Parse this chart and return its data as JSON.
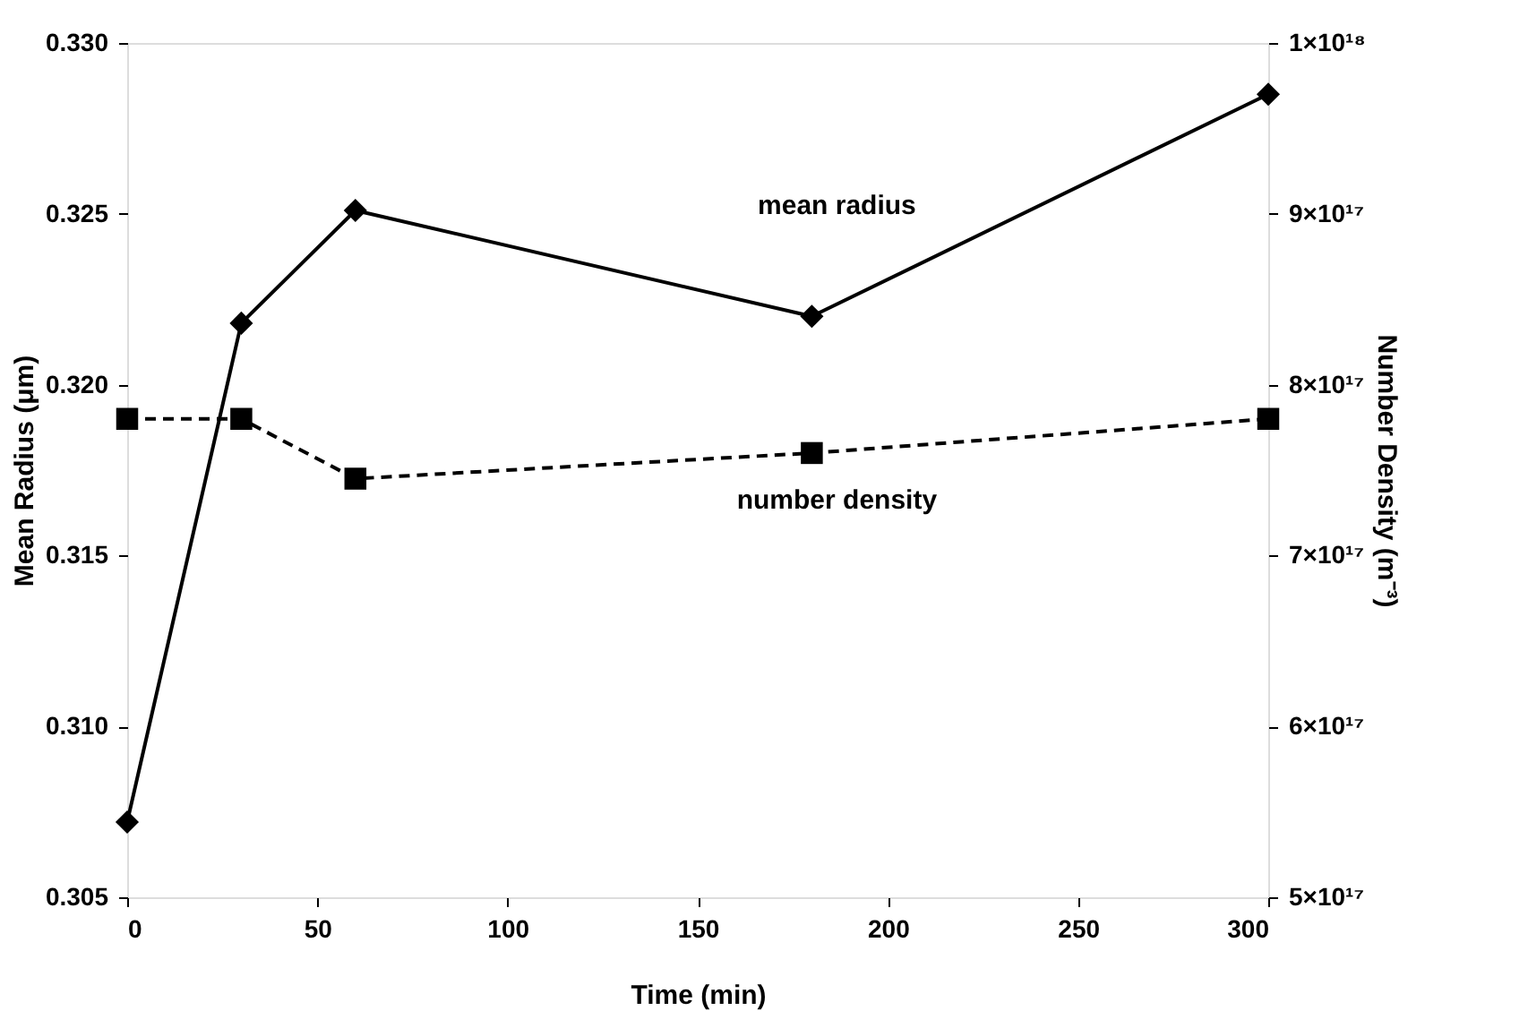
{
  "chart_data": {
    "type": "line",
    "xlabel": "Time (min)",
    "ylabel": "Mean Radius (μm)",
    "y2label": "Number Density (m⁻³)",
    "x": [
      0,
      30,
      60,
      180,
      300
    ],
    "series": [
      {
        "color": "#000000",
        "values": [
          0.3072,
          0.3218,
          0.3251,
          0.322,
          0.3285
        ],
        "axis": "y",
        "marker": "diamond",
        "line_style": "solid"
      },
      {
        "color": "#000000",
        "values": [
          7.8e+17,
          7.8e+17,
          7.45e+17,
          7.6e+17,
          7.8e+17
        ],
        "axis": "y2",
        "marker": "square",
        "line_style": "dashed"
      }
    ],
    "xlim": [
      0,
      300
    ],
    "xticks": [
      0,
      50,
      100,
      150,
      200,
      250,
      300
    ],
    "ylim": [
      0.305,
      0.33
    ],
    "yticks": [
      {
        "value": 0.305,
        "label": "0.305"
      },
      {
        "value": 0.31,
        "label": "0.310"
      },
      {
        "value": 0.315,
        "label": "0.315"
      },
      {
        "value": 0.32,
        "label": "0.320"
      },
      {
        "value": 0.325,
        "label": "0.325"
      },
      {
        "value": 0.33,
        "label": "0.330"
      }
    ],
    "y2lim": [
      5e+17,
      1e+18
    ],
    "y2ticks": [
      {
        "value": 5e+17,
        "label": "5×10¹⁷"
      },
      {
        "value": 6e+17,
        "label": "6×10¹⁷"
      },
      {
        "value": 7e+17,
        "label": "7×10¹⁷"
      },
      {
        "value": 8e+17,
        "label": "8×10¹⁷"
      },
      {
        "value": 9e+17,
        "label": "9×10¹⁷"
      },
      {
        "value": 1e+18,
        "label": "1×10¹⁸"
      }
    ],
    "annotations": [
      "mean radius",
      "number density"
    ],
    "grid": false
  }
}
